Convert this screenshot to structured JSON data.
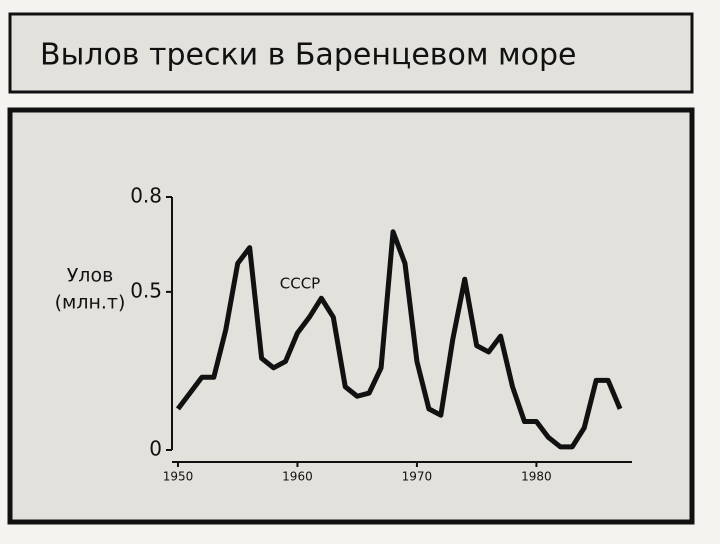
{
  "chart_data": {
    "type": "line",
    "title": "Вылов трески в Баренцевом море",
    "ylabel": [
      "Улов",
      "(млн.т)"
    ],
    "annotation": "СССР",
    "x": [
      1950,
      1951,
      1952,
      1953,
      1954,
      1955,
      1956,
      1957,
      1958,
      1959,
      1960,
      1961,
      1962,
      1963,
      1964,
      1965,
      1966,
      1967,
      1968,
      1969,
      1970,
      1971,
      1972,
      1973,
      1974,
      1975,
      1976,
      1977,
      1978,
      1979,
      1980,
      1981,
      1982,
      1983,
      1984,
      1985,
      1986,
      1987
    ],
    "series": [
      {
        "color": "#111111",
        "values": [
          0.13,
          0.18,
          0.23,
          0.23,
          0.38,
          0.59,
          0.64,
          0.29,
          0.26,
          0.28,
          0.37,
          0.42,
          0.48,
          0.42,
          0.2,
          0.17,
          0.18,
          0.26,
          0.69,
          0.59,
          0.28,
          0.13,
          0.11,
          0.35,
          0.54,
          0.33,
          0.31,
          0.36,
          0.2,
          0.09,
          0.09,
          0.04,
          0.01,
          0.01,
          0.07,
          0.22,
          0.22,
          0.13
        ]
      }
    ],
    "xlim": [
      1949.5,
      1988
    ],
    "xticks": [
      1950,
      1960,
      1970,
      1980
    ],
    "ylim": [
      0,
      0.8
    ],
    "yticks": [
      0,
      0.5,
      0.8
    ],
    "grid": false
  }
}
